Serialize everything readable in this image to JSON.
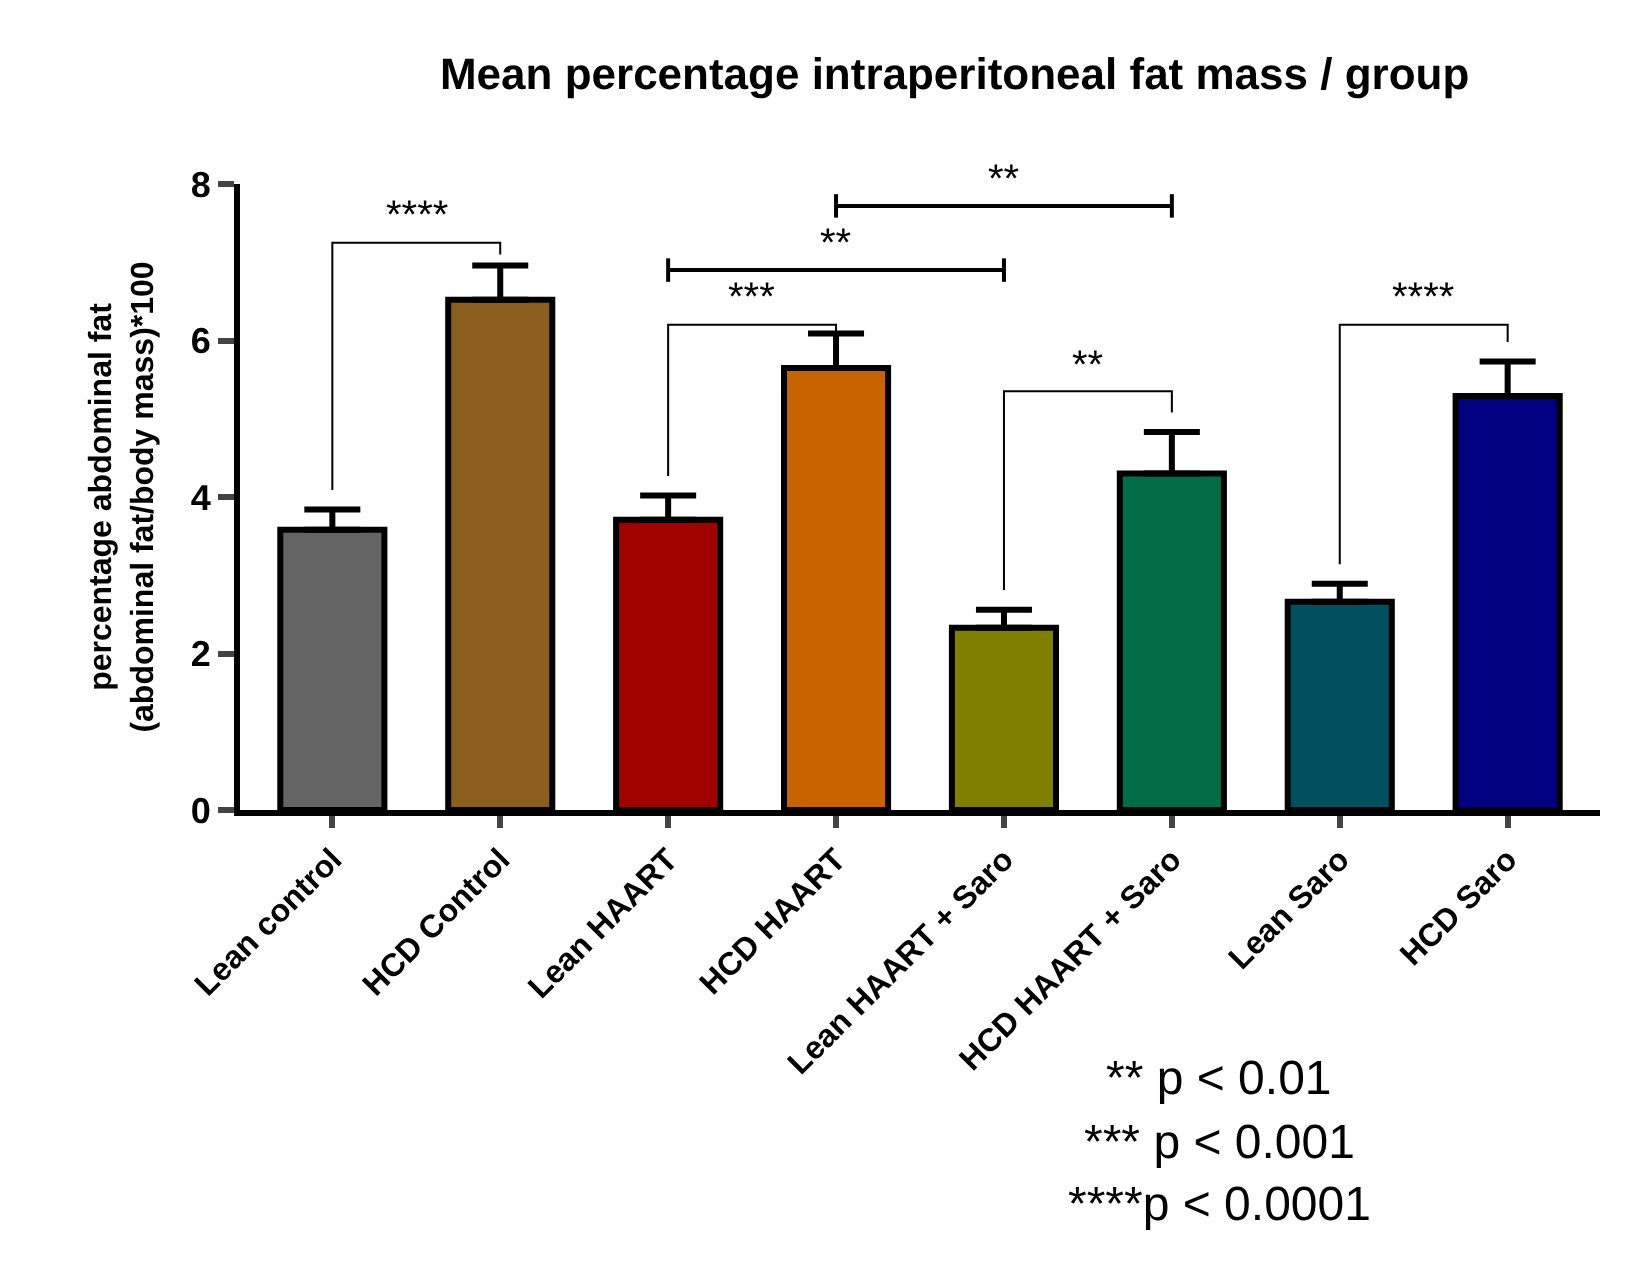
{
  "chart_data": {
    "type": "bar",
    "title": "Mean percentage intraperitoneal fat mass / group",
    "ylabel": "percentage abdominal fat\n(abdominal fat/body mass)*100",
    "categories": [
      "Lean control",
      "HCD Control",
      "Lean HAART",
      "HCD HAART",
      "Lean HAART + Saro",
      "HCD HAART + Saro",
      "Lean Saro",
      "HCD Saro"
    ],
    "values": [
      3.58,
      6.52,
      3.71,
      5.65,
      2.33,
      4.3,
      2.66,
      5.29
    ],
    "colors": [
      "#646464",
      "#8b5e20",
      "#a00000",
      "#c86400",
      "#808000",
      "#006d46",
      "#005060",
      "#000080"
    ],
    "errors": [
      [
        3.58,
        3.84
      ],
      [
        6.52,
        6.96
      ],
      [
        3.71,
        4.02
      ],
      [
        5.65,
        6.09
      ],
      [
        2.33,
        2.56
      ],
      [
        4.3,
        4.83
      ],
      [
        2.66,
        2.89
      ],
      [
        5.29,
        5.73
      ]
    ],
    "ylim": [
      0,
      8
    ],
    "yticks": [
      0,
      2,
      4,
      6,
      8
    ],
    "legend": false,
    "annotations": [
      "****",
      "***",
      "**",
      "**",
      "**",
      "****",
      "** p < 0.01",
      "*** p < 0.001",
      "****p < 0.0001"
    ]
  }
}
